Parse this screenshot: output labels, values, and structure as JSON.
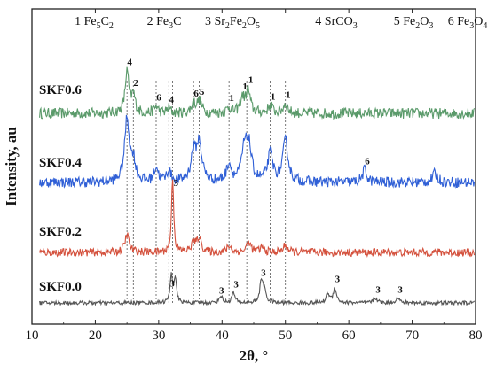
{
  "chart_data": {
    "type": "line",
    "xlabel": "2θ, °",
    "ylabel": "Intensity, au",
    "xlim": [
      10,
      80
    ],
    "x_ticks": [
      "10",
      "20",
      "30",
      "40",
      "50",
      "60",
      "70",
      "80"
    ],
    "grid": false,
    "legend": [
      {
        "num": "1",
        "name": "Fe5C2",
        "parts": [
          [
            "Fe",
            ""
          ],
          [
            "5",
            "sub"
          ],
          [
            "C",
            ""
          ],
          [
            "2",
            "sub"
          ]
        ]
      },
      {
        "num": "2",
        "name": "Fe3C",
        "parts": [
          [
            "Fe",
            ""
          ],
          [
            "3",
            "sub"
          ],
          [
            "C",
            ""
          ]
        ]
      },
      {
        "num": "3",
        "name": "Sr2Fe2O5",
        "parts": [
          [
            "Sr",
            ""
          ],
          [
            "2",
            "sub"
          ],
          [
            "Fe",
            ""
          ],
          [
            "2",
            "sub"
          ],
          [
            "O",
            ""
          ],
          [
            "5",
            "sub"
          ]
        ]
      },
      {
        "num": "4",
        "name": "SrCO3",
        "parts": [
          [
            "SrCO",
            ""
          ],
          [
            "3",
            "sub"
          ]
        ]
      },
      {
        "num": "5",
        "name": "Fe2O3",
        "parts": [
          [
            "Fe",
            ""
          ],
          [
            "2",
            "sub"
          ],
          [
            "O",
            ""
          ],
          [
            "3",
            "sub"
          ]
        ]
      },
      {
        "num": "6",
        "name": "Fe3O4",
        "parts": [
          [
            "Fe",
            ""
          ],
          [
            "3",
            "sub"
          ],
          [
            "O",
            ""
          ],
          [
            "4",
            "sub"
          ]
        ]
      }
    ],
    "reference_lines_2theta": [
      25.0,
      26.0,
      29.6,
      31.6,
      32.2,
      35.5,
      36.4,
      41.1,
      43.9,
      47.6,
      50.0
    ],
    "series": [
      {
        "name": "SKF0.6",
        "color": "#5a9a6a",
        "baseline": 0.0,
        "noise": 0.55,
        "peaks": [
          [
            25.0,
            4.2,
            0.35
          ],
          [
            26.0,
            1.8,
            0.35
          ],
          [
            29.6,
            0.7,
            0.35
          ],
          [
            31.6,
            0.5,
            0.35
          ],
          [
            35.5,
            0.9,
            0.4
          ],
          [
            36.4,
            1.2,
            0.45
          ],
          [
            41.1,
            0.6,
            0.4
          ],
          [
            43.2,
            1.5,
            0.4
          ],
          [
            44.1,
            2.3,
            0.4
          ],
          [
            47.6,
            0.8,
            0.4
          ],
          [
            50.0,
            1.0,
            0.4
          ]
        ],
        "peak_labels": [
          {
            "x": 25.0,
            "text": "4"
          },
          {
            "x": 26.0,
            "text": "2"
          },
          {
            "x": 29.6,
            "text": "6"
          },
          {
            "x": 31.6,
            "text": "4"
          },
          {
            "x": 35.5,
            "text": "6"
          },
          {
            "x": 36.4,
            "text": "5"
          },
          {
            "x": 41.1,
            "text": "1"
          },
          {
            "x": 43.2,
            "text": "1"
          },
          {
            "x": 44.1,
            "text": "1"
          },
          {
            "x": 47.6,
            "text": "1"
          },
          {
            "x": 50.0,
            "text": "1"
          }
        ]
      },
      {
        "name": "SKF0.4",
        "color": "#2f5fd6",
        "baseline": 0.0,
        "noise": 0.55,
        "peaks": [
          [
            25.0,
            6.5,
            0.45
          ],
          [
            26.0,
            2.0,
            0.4
          ],
          [
            29.6,
            1.5,
            0.4
          ],
          [
            31.6,
            1.1,
            0.4
          ],
          [
            35.5,
            2.8,
            0.5
          ],
          [
            36.4,
            3.8,
            0.5
          ],
          [
            41.1,
            1.8,
            0.45
          ],
          [
            43.5,
            3.0,
            0.5
          ],
          [
            44.2,
            3.6,
            0.5
          ],
          [
            47.6,
            2.8,
            0.5
          ],
          [
            50.0,
            4.2,
            0.5
          ],
          [
            62.5,
            1.3,
            0.4
          ],
          [
            73.6,
            0.9,
            0.5
          ]
        ],
        "peak_labels": [
          {
            "x": 62.5,
            "text": "6"
          }
        ]
      },
      {
        "name": "SKF0.2",
        "color": "#d4513d",
        "baseline": 0.0,
        "noise": 0.5,
        "peaks": [
          [
            25.0,
            2.2,
            0.4
          ],
          [
            32.2,
            9.5,
            0.2
          ],
          [
            35.5,
            1.2,
            0.4
          ],
          [
            36.4,
            1.8,
            0.4
          ],
          [
            41.1,
            0.8,
            0.4
          ],
          [
            44.2,
            1.3,
            0.4
          ],
          [
            46.3,
            0.6,
            0.4
          ],
          [
            50.0,
            0.9,
            0.4
          ]
        ],
        "peak_labels": [
          {
            "x": 32.3,
            "text": "3"
          }
        ]
      },
      {
        "name": "SKF0.0",
        "color": "#555555",
        "baseline": 0.0,
        "noise": 0.35,
        "peaks": [
          [
            32.0,
            5.0,
            0.22
          ],
          [
            32.6,
            4.5,
            0.22
          ],
          [
            39.8,
            1.3,
            0.3
          ],
          [
            41.8,
            1.8,
            0.3
          ],
          [
            46.2,
            4.0,
            0.28
          ],
          [
            46.7,
            2.2,
            0.28
          ],
          [
            56.7,
            1.7,
            0.3
          ],
          [
            57.8,
            2.7,
            0.3
          ],
          [
            64.2,
            0.9,
            0.35
          ],
          [
            67.7,
            0.9,
            0.35
          ]
        ],
        "peak_labels": [
          {
            "x": 31.7,
            "text": "3"
          },
          {
            "x": 39.5,
            "text": "3"
          },
          {
            "x": 41.8,
            "text": "3"
          },
          {
            "x": 46.1,
            "text": "3"
          },
          {
            "x": 57.8,
            "text": "3"
          },
          {
            "x": 64.2,
            "text": "3"
          },
          {
            "x": 67.7,
            "text": "3"
          }
        ]
      }
    ]
  }
}
